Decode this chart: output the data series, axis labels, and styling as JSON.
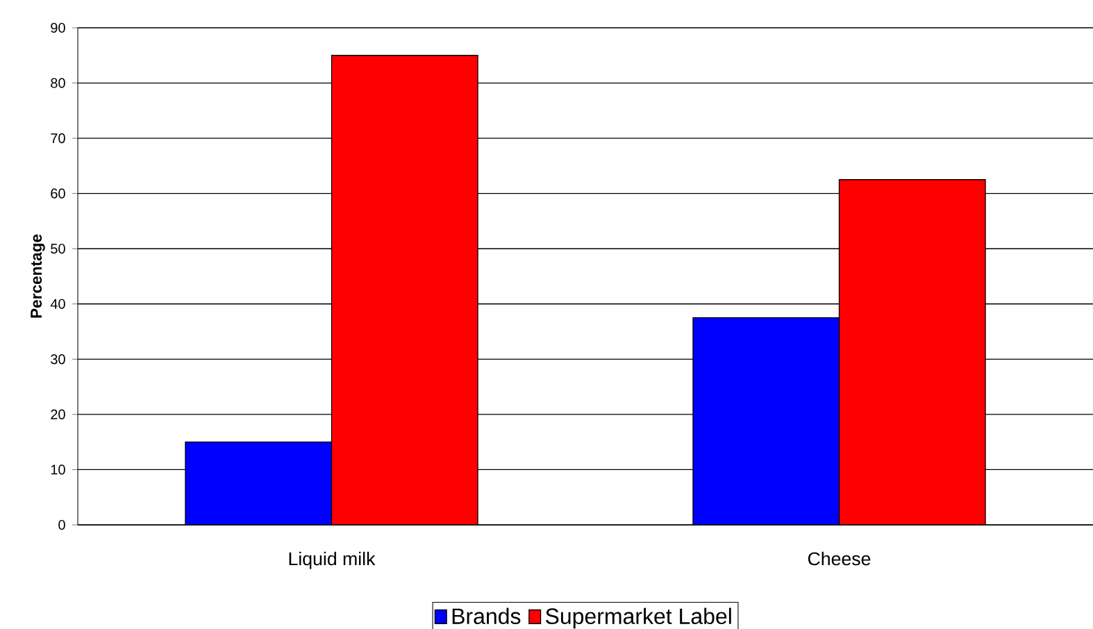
{
  "chart_data": {
    "type": "bar",
    "ylabel": "Percentage",
    "categories": [
      "Liquid milk",
      "Cheese"
    ],
    "series": [
      {
        "name": "Brands",
        "color": "#0000ff",
        "values": [
          15,
          37.5
        ]
      },
      {
        "name": "Supermarket Label",
        "color": "#ff0000",
        "values": [
          85,
          62.5
        ]
      }
    ],
    "ylim": [
      0,
      90
    ],
    "yticks": [
      0,
      10,
      20,
      30,
      40,
      50,
      60,
      70,
      80,
      90
    ],
    "grid": "y",
    "legend": "bottom"
  }
}
